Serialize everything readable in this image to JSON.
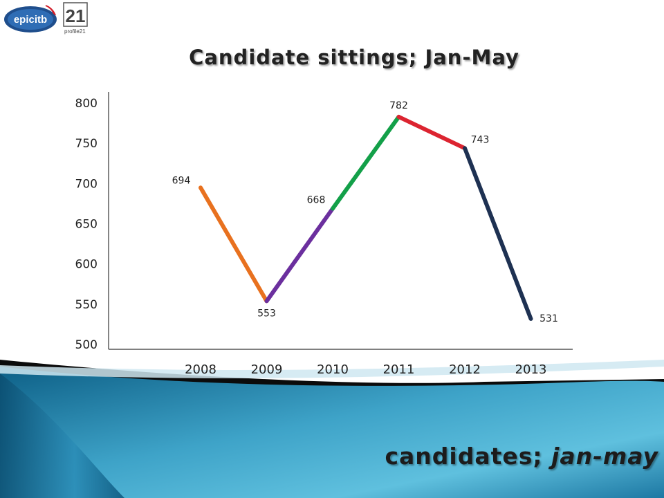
{
  "logos": {
    "epic_text": "epicitb",
    "profile_text": "profile21",
    "profile_mark": "21"
  },
  "footer": {
    "caption_main": "candidates; ",
    "caption_emph": "jan-may"
  },
  "colors": {
    "segment_2008_2009": "#e8711f",
    "segment_2009_2010": "#6b2f9e",
    "segment_2010_2011": "#13a049",
    "segment_2011_2012": "#dc2430",
    "segment_2012_2013": "#1e3152",
    "axis": "#333333",
    "background_accent": "#2e8fb4"
  },
  "chart_data": {
    "type": "line",
    "title": "Candidate sittings; Jan-May",
    "xlabel": "",
    "ylabel": "",
    "categories": [
      "2008",
      "2009",
      "2010",
      "2011",
      "2012",
      "2013"
    ],
    "values": [
      694,
      553,
      668,
      782,
      743,
      531
    ],
    "data_labels": [
      "694",
      "553",
      "668",
      "782",
      "743",
      "531"
    ],
    "ylim": [
      500,
      800
    ],
    "yticks": [
      "800",
      "750",
      "700",
      "650",
      "600",
      "550",
      "500"
    ],
    "grid": false,
    "legend": "none"
  }
}
